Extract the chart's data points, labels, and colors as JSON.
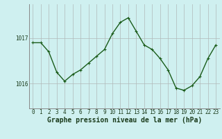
{
  "x": [
    0,
    1,
    2,
    3,
    4,
    5,
    6,
    7,
    8,
    9,
    10,
    11,
    12,
    13,
    14,
    15,
    16,
    17,
    18,
    19,
    20,
    21,
    22,
    23
  ],
  "y": [
    1016.9,
    1016.9,
    1016.7,
    1016.25,
    1016.05,
    1016.2,
    1016.3,
    1016.45,
    1016.6,
    1016.75,
    1017.1,
    1017.35,
    1017.45,
    1017.15,
    1016.85,
    1016.75,
    1016.55,
    1016.3,
    1015.9,
    1015.85,
    1015.95,
    1016.15,
    1016.55,
    1016.85
  ],
  "line_color": "#1a5c1a",
  "marker": "+",
  "marker_size": 3,
  "linewidth": 1.0,
  "bg_color": "#cff0f0",
  "grid_color": "#b0b8b8",
  "xlabel": "Graphe pression niveau de la mer (hPa)",
  "xlabel_fontsize": 7,
  "yticks": [
    1016,
    1017
  ],
  "ylim": [
    1015.45,
    1017.75
  ],
  "xlim": [
    -0.5,
    23.5
  ],
  "xtick_labels": [
    "0",
    "1",
    "2",
    "3",
    "4",
    "5",
    "6",
    "7",
    "8",
    "9",
    "10",
    "11",
    "12",
    "13",
    "14",
    "15",
    "16",
    "17",
    "18",
    "19",
    "20",
    "21",
    "22",
    "23"
  ],
  "tick_fontsize": 5.5
}
